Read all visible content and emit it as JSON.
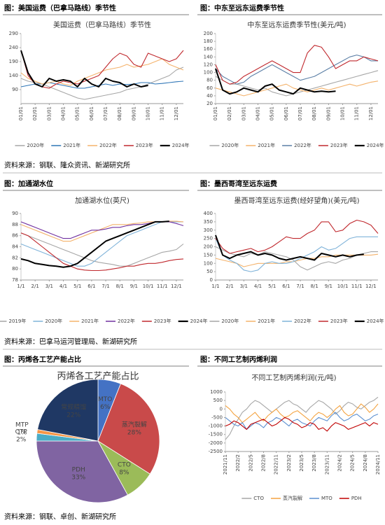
{
  "panels": [
    {
      "header": "图：美国运费（巴拿马路线）季节性"
    },
    {
      "header": "图：中东至远东运费季节性"
    },
    {
      "header": "图：加通湖水位"
    },
    {
      "header": "图：墨西哥湾至远东运费"
    },
    {
      "header": "图：丙烯各工艺产能占比"
    },
    {
      "header": "图：不同工艺制丙烯利润"
    }
  ],
  "sources": [
    "资料来源：钢联、隆众资讯、新湖研究所",
    "资料来源：巴拿马运河管理局、新湖研究所",
    "资料来源：钢联、卓创、新湖研究所"
  ],
  "chart_data": [
    {
      "type": "line",
      "title": "美国运费（巴拿马路线）季节性",
      "ylim": [
        40,
        290
      ],
      "yticks": [
        90,
        140,
        190,
        240,
        290
      ],
      "categories": [
        "01/01",
        null,
        "02/01",
        null,
        "03/01",
        null,
        "04/01",
        null,
        "05/01",
        null,
        "06/01",
        null,
        "07/01",
        null,
        "08/01",
        null,
        "09/01",
        null,
        "10/01",
        null,
        "11/01",
        null,
        "12/01",
        null
      ],
      "series": [
        {
          "name": "2020年",
          "color": "#a6a6a6",
          "values": [
            130,
            120,
            115,
            110,
            100,
            90,
            80,
            70,
            60,
            55,
            60,
            65,
            70,
            75,
            80,
            90,
            95,
            100,
            110,
            120,
            130,
            140,
            160,
            170
          ]
        },
        {
          "name": "2021年",
          "color": "#2e75b6",
          "values": [
            100,
            105,
            110,
            110,
            115,
            110,
            105,
            100,
            95,
            95,
            100,
            105,
            110,
            105,
            110,
            108,
            110,
            115,
            115,
            110,
            112,
            115,
            118,
            120
          ]
        },
        {
          "name": "2022年",
          "color": "#f4b26b",
          "values": [
            150,
            130,
            120,
            110,
            115,
            120,
            110,
            105,
            120,
            130,
            140,
            150,
            160,
            165,
            170,
            180,
            170,
            175,
            180,
            190,
            200,
            180,
            170,
            160
          ]
        },
        {
          "name": "2023年",
          "color": "#c0282d",
          "values": [
            230,
            140,
            110,
            100,
            95,
            110,
            120,
            115,
            110,
            120,
            130,
            140,
            170,
            200,
            220,
            210,
            180,
            170,
            220,
            210,
            200,
            190,
            200,
            230
          ]
        },
        {
          "name": "2024年",
          "color": "#000000",
          "values": [
            230,
            150,
            110,
            100,
            130,
            120,
            125,
            120,
            100,
            130,
            110,
            100,
            130,
            120,
            115,
            100,
            110,
            100,
            105,
            null,
            null,
            null,
            null,
            null
          ]
        }
      ]
    },
    {
      "type": "line",
      "title": "中东至远东运费季节性(美元/吨)",
      "ylim": [
        20,
        200
      ],
      "yticks": [
        20,
        40,
        60,
        80,
        100,
        120,
        140,
        160,
        180,
        200
      ],
      "categories": [
        "01/01",
        null,
        "02/01",
        null,
        "03/01",
        null,
        "04/01",
        null,
        "05/01",
        null,
        "06/01",
        null,
        "07/01",
        null,
        "08/01",
        null,
        "09/01",
        null,
        "10/01",
        null,
        "11/01",
        null,
        "12/01",
        null
      ],
      "series": [
        {
          "name": "2020年",
          "color": "#a6a6a6",
          "values": [
            90,
            80,
            70,
            70,
            65,
            60,
            55,
            60,
            50,
            45,
            40,
            45,
            50,
            55,
            60,
            65,
            70,
            75,
            80,
            85,
            90,
            95,
            100,
            105
          ]
        },
        {
          "name": "2021年",
          "color": "#f4b26b",
          "values": [
            60,
            55,
            50,
            45,
            40,
            45,
            50,
            55,
            60,
            65,
            70,
            60,
            55,
            50,
            55,
            60,
            55,
            60,
            65,
            70,
            65,
            70,
            75,
            78
          ]
        },
        {
          "name": "2022年",
          "color": "#5b7fa6",
          "values": [
            110,
            90,
            80,
            70,
            75,
            90,
            100,
            110,
            120,
            110,
            100,
            90,
            80,
            85,
            90,
            100,
            110,
            120,
            130,
            140,
            145,
            140,
            130,
            130
          ]
        },
        {
          "name": "2023年",
          "color": "#c0282d",
          "values": [
            120,
            80,
            70,
            75,
            90,
            100,
            110,
            120,
            130,
            120,
            110,
            100,
            100,
            150,
            170,
            165,
            140,
            110,
            120,
            130,
            130,
            140,
            135,
            130
          ]
        },
        {
          "name": "2024年",
          "color": "#000000",
          "values": [
            110,
            55,
            45,
            50,
            60,
            55,
            50,
            65,
            70,
            55,
            50,
            45,
            60,
            55,
            50,
            52,
            50,
            52,
            null,
            null,
            null,
            null,
            null,
            null
          ]
        }
      ]
    },
    {
      "type": "line",
      "title": "加通湖水位(英尺)",
      "ylim": [
        78,
        90
      ],
      "yticks": [
        78,
        80,
        82,
        84,
        86,
        88,
        90
      ],
      "categories": [
        "1/1",
        null,
        "2/1",
        null,
        "3/1",
        null,
        "4/1",
        null,
        "5/1",
        null,
        "6/1",
        null,
        "7/1",
        null,
        "8/1",
        null,
        "9/1",
        null,
        "10/1",
        null,
        "11/1",
        null,
        "12/1",
        null
      ],
      "series": [
        {
          "name": "2019年",
          "color": "#a6a6a6",
          "values": [
            86.5,
            86,
            85.5,
            85,
            84.5,
            84,
            83.5,
            83,
            82.5,
            82,
            81.5,
            81.2,
            81,
            80.8,
            80.5,
            80.5,
            81,
            81.5,
            82,
            82.5,
            83,
            83.2,
            83.5,
            84.5
          ]
        },
        {
          "name": "2020年",
          "color": "#7fb3d9",
          "values": [
            84.5,
            84,
            83.5,
            83,
            82.5,
            82,
            81.5,
            81,
            80.5,
            80.5,
            81,
            82,
            83,
            84,
            85,
            86,
            86.5,
            87,
            87.5,
            88,
            88.5,
            88.5,
            88.5,
            88.5
          ]
        },
        {
          "name": "2021年",
          "color": "#f4b26b",
          "values": [
            88,
            87.5,
            87,
            86.5,
            86,
            85.5,
            85,
            85,
            85.5,
            86,
            86.5,
            87,
            87.5,
            88,
            88,
            88,
            88.2,
            88.3,
            88.5,
            88.5,
            88.5,
            88.6,
            88.6,
            88.5
          ]
        },
        {
          "name": "2022年",
          "color": "#7030a0",
          "values": [
            88.5,
            88,
            87.5,
            87,
            86.5,
            86,
            85.5,
            85.5,
            86,
            86.5,
            87,
            87,
            87.2,
            87.5,
            87.5,
            87.8,
            88,
            88,
            88.2,
            88.5,
            88.5,
            88.5,
            88.2,
            87.8
          ]
        },
        {
          "name": "2023年",
          "color": "#c0282d",
          "values": [
            86.5,
            86,
            85,
            84,
            83,
            82,
            81,
            80.5,
            80,
            79.8,
            79.7,
            79.7,
            79.8,
            80,
            80.2,
            80.5,
            80.5,
            80.8,
            81,
            81,
            81.2,
            81.5,
            81.7,
            81.8
          ]
        },
        {
          "name": "2024年",
          "color": "#000000",
          "values": [
            81.8,
            81.5,
            81,
            80.8,
            80.6,
            80.5,
            80.3,
            80.5,
            81,
            82,
            83,
            84,
            85,
            85.5,
            86,
            86.5,
            87,
            87.5,
            88,
            88.5,
            88.5,
            88.6,
            null,
            null
          ]
        }
      ]
    },
    {
      "type": "line",
      "title": "墨西哥湾至远东运费(经好望角)(美元/吨)",
      "ylim": [
        0,
        400
      ],
      "yticks": [
        0,
        50,
        100,
        150,
        200,
        250,
        300,
        350,
        400
      ],
      "categories": [
        "1/1",
        null,
        "2/1",
        null,
        "3/1",
        null,
        "4/1",
        null,
        "5/1",
        null,
        "6/1",
        null,
        "7/1",
        null,
        "8/1",
        null,
        "9/1",
        null,
        "10/1",
        null,
        "11/1",
        null,
        "12/1",
        null
      ],
      "series": [
        {
          "name": "2020年",
          "color": "#a6a6a6",
          "values": [
            200,
            180,
            160,
            150,
            140,
            160,
            150,
            170,
            160,
            150,
            140,
            120,
            80,
            60,
            80,
            100,
            110,
            100,
            120,
            130,
            150,
            160,
            170,
            170
          ]
        },
        {
          "name": "2021年",
          "color": "#f4b26b",
          "values": [
            130,
            120,
            110,
            100,
            80,
            90,
            100,
            100,
            100,
            100,
            110,
            110,
            120,
            130,
            130,
            140,
            140,
            150,
            150,
            150,
            150,
            150,
            150,
            155
          ]
        },
        {
          "name": "2022年",
          "color": "#7fb3d9",
          "values": [
            250,
            150,
            120,
            100,
            60,
            50,
            60,
            100,
            110,
            100,
            100,
            110,
            130,
            150,
            170,
            200,
            180,
            190,
            220,
            250,
            260,
            260,
            260,
            260
          ]
        },
        {
          "name": "2023年",
          "color": "#c0282d",
          "values": [
            250,
            190,
            160,
            170,
            180,
            190,
            170,
            180,
            200,
            230,
            260,
            250,
            250,
            280,
            300,
            350,
            350,
            290,
            300,
            340,
            360,
            350,
            330,
            280
          ]
        },
        {
          "name": "2024年",
          "color": "#000000",
          "values": [
            270,
            150,
            130,
            150,
            160,
            170,
            150,
            160,
            150,
            130,
            120,
            130,
            140,
            130,
            120,
            160,
            150,
            140,
            150,
            140,
            150,
            155,
            null,
            null
          ]
        }
      ]
    },
    {
      "type": "pie",
      "title": "丙烯各工艺产能占比",
      "labels": [
        "MTO",
        "蒸汽裂解",
        "CTO",
        "PDH",
        "CTP",
        "MTP",
        "常规精馏"
      ],
      "values": [
        6,
        28,
        8,
        33,
        2,
        1,
        22
      ],
      "value_labels": [
        "6%",
        "28%",
        "8%",
        "33%",
        "2%",
        "1%",
        "22%"
      ],
      "colors": [
        "#4472c4",
        "#c94a4a",
        "#9bbb59",
        "#8064a2",
        "#4bacc6",
        "#f79646",
        "#1f3864"
      ]
    },
    {
      "type": "line",
      "title": "不同工艺制丙烯利润(元/吨)",
      "ylim": [
        -2500,
        1000
      ],
      "yticks": [
        -2500,
        -2000,
        -1500,
        -1000,
        -500,
        0,
        500,
        1000
      ],
      "categories": [
        "2021/11",
        null,
        null,
        "2022/2",
        null,
        null,
        "2022/5",
        null,
        null,
        "2022/8",
        null,
        null,
        "2022/11",
        null,
        null,
        "2023/2",
        null,
        null,
        "2023/5",
        null,
        null,
        "2023/8",
        null,
        null,
        "2023/11",
        null,
        null,
        "2024/2",
        null,
        null,
        "2024/5",
        null,
        null,
        "2024/8",
        null,
        null,
        "2024/11"
      ],
      "series": [
        {
          "name": "CTO",
          "color": "#a6a6a6",
          "values": [
            -1800,
            -1500,
            -1000,
            -600,
            -200,
            0,
            300,
            500,
            400,
            200,
            0,
            -200,
            0,
            200,
            400,
            500,
            300,
            200,
            0,
            -200,
            100,
            300,
            500,
            400,
            200,
            0,
            -300,
            -100,
            200,
            400,
            300,
            100,
            0,
            200,
            400,
            500,
            700
          ]
        },
        {
          "name": "蒸汽裂解",
          "color": "#f4a340",
          "values": [
            200,
            0,
            -300,
            -500,
            -800,
            -600,
            -400,
            -200,
            -500,
            -700,
            -400,
            -200,
            0,
            -300,
            -500,
            -400,
            -200,
            -100,
            -300,
            -500,
            -700,
            -400,
            -200,
            -300,
            -500,
            -300,
            0,
            200,
            -200,
            -400,
            -300,
            0,
            300,
            100,
            -200,
            0,
            300
          ]
        },
        {
          "name": "MTO",
          "color": "#5b8fd0",
          "values": [
            -500,
            -700,
            -900,
            -1000,
            -800,
            -1200,
            -1000,
            -800,
            -900,
            -1100,
            -800,
            -700,
            -500,
            -600,
            -800,
            -1000,
            -700,
            -600,
            -800,
            -900,
            -1000,
            -700,
            -500,
            -600,
            -700,
            -400,
            -200,
            -500,
            -700,
            -600,
            -400,
            -300,
            -500,
            -700,
            -600,
            -400,
            -300
          ]
        },
        {
          "name": "PDH",
          "color": "#c00000",
          "values": [
            -1000,
            -900,
            -700,
            -800,
            -1000,
            -1200,
            -900,
            -800,
            -700,
            -600,
            -800,
            -1000,
            -900,
            -700,
            -500,
            -600,
            -800,
            -900,
            -1100,
            -1000,
            -800,
            -900,
            -1200,
            -1100,
            -1300,
            -1000,
            -800,
            -900,
            -1000,
            -1200,
            -1100,
            -1000,
            -900,
            -800,
            -1000,
            -800,
            -900
          ]
        }
      ]
    }
  ]
}
